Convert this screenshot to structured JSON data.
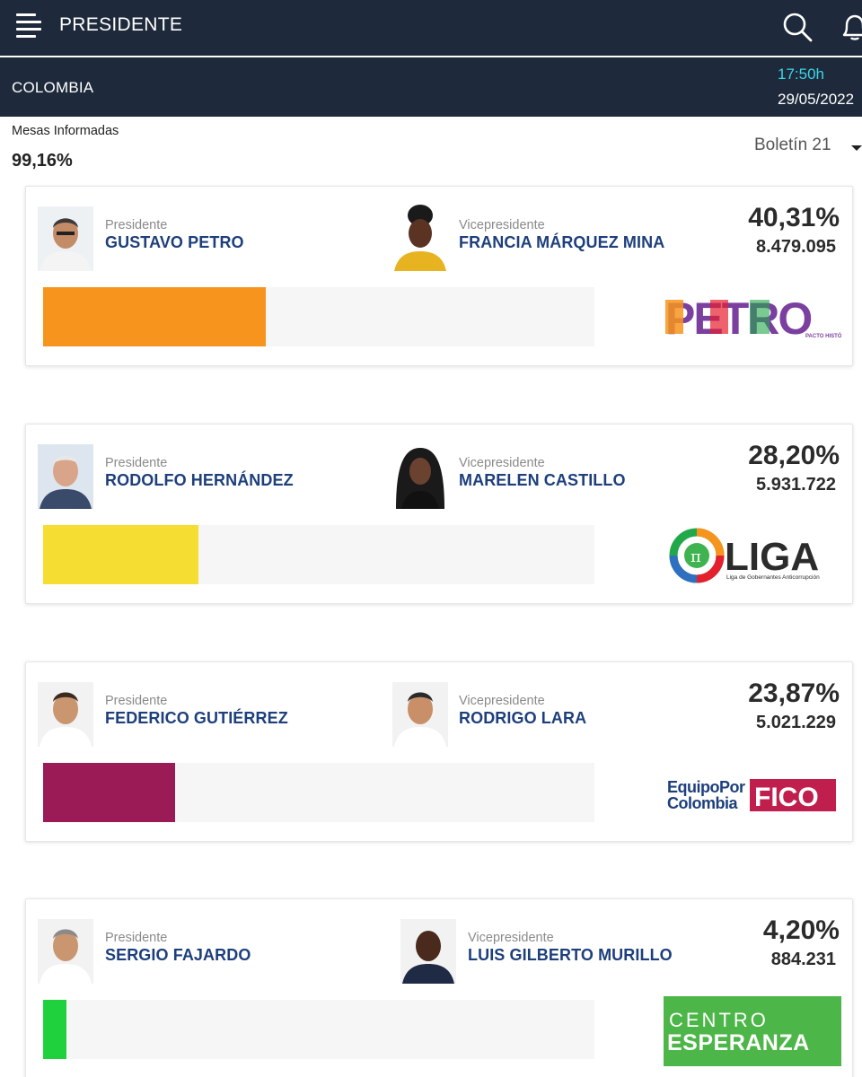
{
  "header": {
    "title": "PRESIDENTE",
    "menu_icon": "hamburger-menu-icon",
    "search_icon": "search-icon",
    "bell_icon": "bell-icon"
  },
  "subheader": {
    "country": "COLOMBIA",
    "time": "17:50h",
    "date": "29/05/2022"
  },
  "summary": {
    "mesas_label": "Mesas Informadas",
    "mesas_value": "99,16%",
    "boletin": "Boletín 21"
  },
  "candidates": [
    {
      "president_role": "Presidente",
      "president_name": "GUSTAVO PETRO",
      "vice_role": "Vicepresidente",
      "vice_name": "FRANCIA MÁRQUEZ MINA",
      "percent": "40,31%",
      "votes": "8.479.095",
      "share": 0.4031,
      "bar_color": "#f7941d",
      "logo_text": "PETRO",
      "logo_subtext": "PACTO HISTÓRICO"
    },
    {
      "president_role": "Presidente",
      "president_name": "RODOLFO HERNÁNDEZ",
      "vice_role": "Vicepresidente",
      "vice_name": "MARELEN CASTILLO",
      "percent": "28,20%",
      "votes": "5.931.722",
      "share": 0.282,
      "bar_color": "#f5dd32",
      "logo_text": "LIGA",
      "logo_subtext": "Liga de Gobernantes Anticorrupción"
    },
    {
      "president_role": "Presidente",
      "president_name": "FEDERICO GUTIÉRREZ",
      "vice_role": "Vicepresidente",
      "vice_name": "RODRIGO LARA",
      "percent": "23,87%",
      "votes": "5.021.229",
      "share": 0.2387,
      "bar_color": "#9a1b55",
      "logo_text": "FICO",
      "logo_line1": "EquipoPor",
      "logo_line2": "Colombia"
    },
    {
      "president_role": "Presidente",
      "president_name": "SERGIO FAJARDO",
      "vice_role": "Vicepresidente",
      "vice_name": "LUIS GILBERTO MURILLO",
      "percent": "4,20%",
      "votes": "884.231",
      "share": 0.042,
      "bar_color": "#1fd13d",
      "logo_line1": "CENTRO",
      "logo_line2": "ESPERANZA"
    }
  ]
}
